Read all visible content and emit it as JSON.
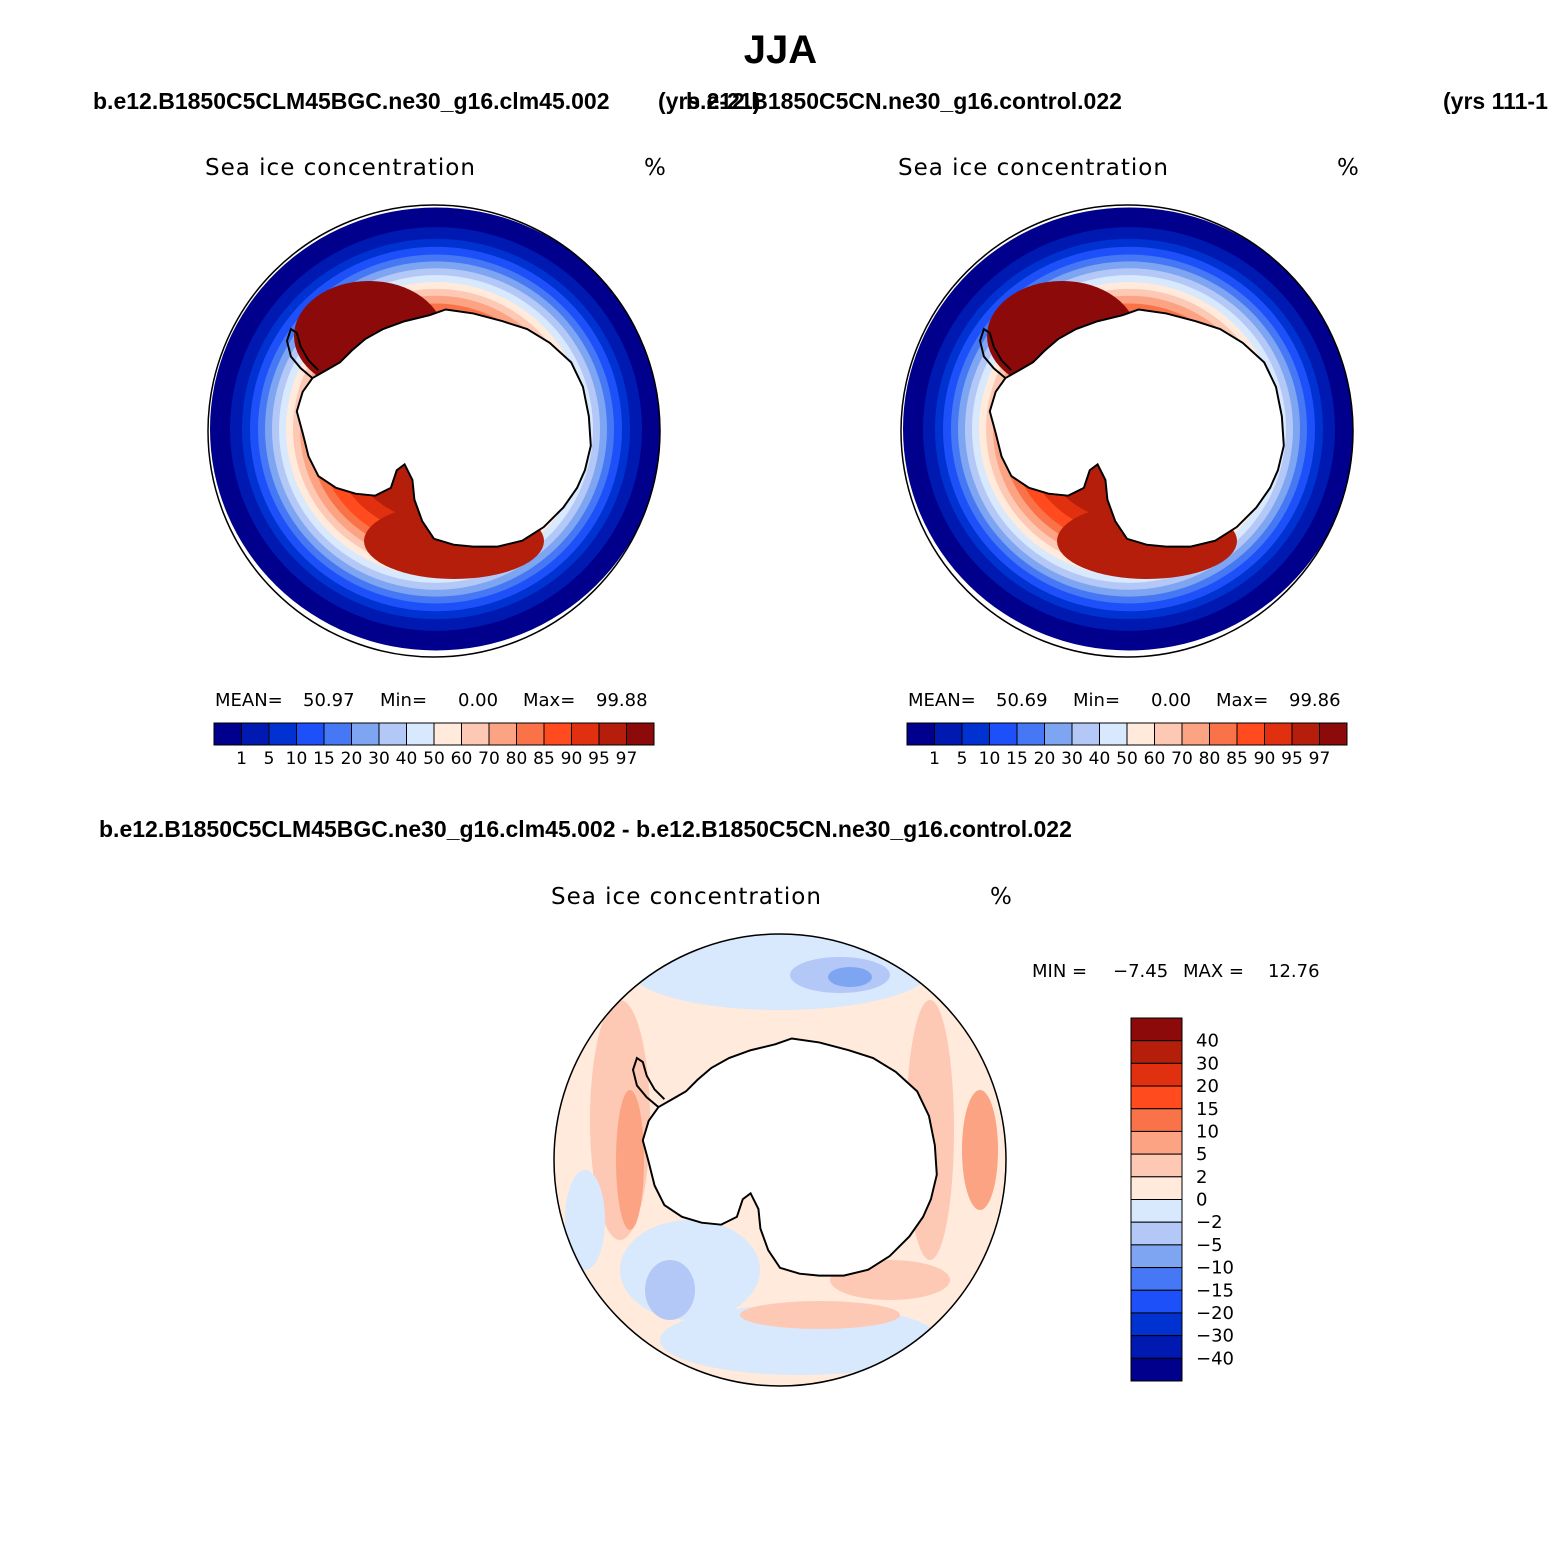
{
  "figure": {
    "season": "JJA",
    "case_a": "b.e12.B1850C5CLM45BGC.ne30_g16.clm45.002",
    "case_a_years": "(yrs 2-21)",
    "case_b": "b.e12.B1850C5CN.ne30_g16.control.022",
    "case_b_years": "(yrs 111-1",
    "diff_title": "b.e12.B1850C5CLM45BGC.ne30_g16.clm45.002 - b.e12.B1850C5CN.ne30_g16.control.022"
  },
  "colors": {
    "sequential": [
      "#00008c",
      "#0019b0",
      "#0032d2",
      "#1e50fa",
      "#4678f5",
      "#7ea5f2",
      "#b4c8f8",
      "#d8e8fd",
      "#ffeadb",
      "#fdc9b4",
      "#fca383",
      "#fa7248",
      "#ff4b1e",
      "#e0300f",
      "#b41e0a",
      "#8c0a0a"
    ],
    "difference": [
      "#00008c",
      "#0019b0",
      "#0032d2",
      "#1e50fa",
      "#4678f5",
      "#7ea5f2",
      "#b4c8f8",
      "#d8e8fd",
      "#ffeadb",
      "#fdc9b4",
      "#fca383",
      "#fa7248",
      "#ff4b1e",
      "#e0300f",
      "#b41e0a",
      "#8c0a0a"
    ],
    "land": "#ffffff",
    "coast": "#000000"
  },
  "chart_data": [
    {
      "type": "heatmap",
      "projection": "south-polar-stereographic",
      "panel": "top-left",
      "title": "Sea ice concentration",
      "units": "%",
      "mean_label": "MEAN=",
      "mean": "50.97",
      "min_label": "Min=",
      "min": "0.00",
      "max_label": "Max=",
      "max": "99.88",
      "levels": [
        "1",
        "5",
        "10",
        "15",
        "20",
        "30",
        "40",
        "50",
        "60",
        "70",
        "80",
        "85",
        "90",
        "95",
        "97"
      ],
      "colorbar": "horizontal-bottom"
    },
    {
      "type": "heatmap",
      "projection": "south-polar-stereographic",
      "panel": "top-right",
      "title": "Sea ice concentration",
      "units": "%",
      "mean_label": "MEAN=",
      "mean": "50.69",
      "min_label": "Min=",
      "min": "0.00",
      "max_label": "Max=",
      "max": "99.86",
      "levels": [
        "1",
        "5",
        "10",
        "15",
        "20",
        "30",
        "40",
        "50",
        "60",
        "70",
        "80",
        "85",
        "90",
        "95",
        "97"
      ],
      "colorbar": "horizontal-bottom"
    },
    {
      "type": "heatmap",
      "projection": "south-polar-stereographic",
      "panel": "bottom-difference",
      "title": "Sea ice concentration",
      "units": "%",
      "min_label": "MIN =",
      "min": "−7.45",
      "max_label": "MAX =",
      "max": "12.76",
      "levels": [
        "40",
        "30",
        "20",
        "15",
        "10",
        "5",
        "2",
        "0",
        "−2",
        "−5",
        "−10",
        "−15",
        "−20",
        "−30",
        "−40"
      ],
      "colorbar": "vertical-right"
    }
  ]
}
